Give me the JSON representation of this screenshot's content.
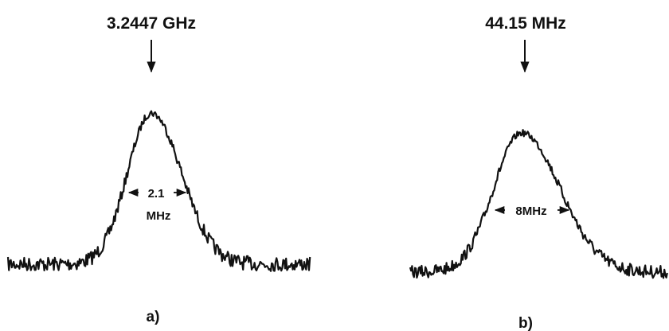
{
  "panels": [
    {
      "frequency": "3.2447 GHz",
      "width_value": "2.1",
      "width_unit": "MHz",
      "label": "a)"
    },
    {
      "frequency": "44.15 MHz",
      "width": "8MHz",
      "label": "b)"
    }
  ]
}
